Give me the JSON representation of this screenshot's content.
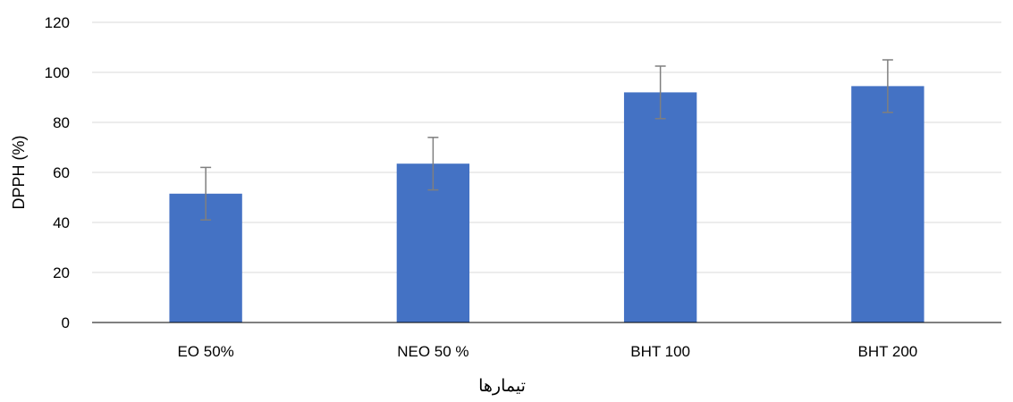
{
  "chart_data": {
    "type": "bar",
    "title": "",
    "xlabel": "تیمارها",
    "ylabel": "DPPH (%)",
    "categories": [
      "EO 50%",
      "NEO 50 %",
      "BHT 100",
      "BHT 200"
    ],
    "series": [
      {
        "values": [
          51.5,
          63.5,
          92.0,
          94.5
        ],
        "error": [
          10.5,
          10.5,
          10.5,
          10.5
        ]
      }
    ],
    "ylim": [
      0,
      120
    ],
    "yticks": [
      "0",
      "20",
      "40",
      "60",
      "80",
      "100",
      "120"
    ],
    "grid": true,
    "legend": "none",
    "colors": {
      "bar": "#4472C4",
      "grid": "#D9D9D9",
      "axis": "#000000",
      "errorbar": "#7F7F7F"
    }
  }
}
